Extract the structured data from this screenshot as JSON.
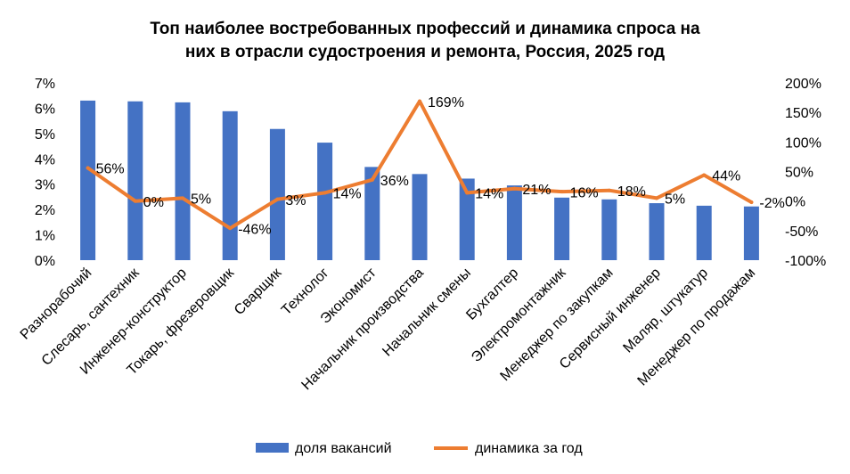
{
  "chart_data": {
    "type": "bar",
    "title_lines": [
      "Топ наиболее востребованных профессий и динамика спроса на",
      "них в отрасли судостроения и ремонта, Россия, 2025 год"
    ],
    "categories": [
      "Разнорабочий",
      "Слесарь, сантехник",
      "Инженер-конструктор",
      "Токарь, фрезеровщик",
      "Сварщик",
      "Технолог",
      "Экономист",
      "Начальник производства",
      "Начальник смены",
      "Бухгалтер",
      "Электромонтажник",
      "Менеджер по закупкам",
      "Сервисный инженер",
      "Маляр, штукатур",
      "Менеджер по продажам"
    ],
    "series": [
      {
        "name": "доля вакансий",
        "type": "bar",
        "axis": "left",
        "color": "#4472C4",
        "values": [
          6.3,
          6.27,
          6.23,
          5.88,
          5.18,
          4.64,
          3.68,
          3.4,
          3.22,
          2.95,
          2.47,
          2.4,
          2.25,
          2.15,
          2.12
        ]
      },
      {
        "name": "динамика за год",
        "type": "line",
        "axis": "right",
        "color": "#ED7D31",
        "values": [
          56,
          0,
          5,
          -46,
          3,
          14,
          36,
          169,
          14,
          21,
          16,
          18,
          5,
          44,
          -2
        ],
        "labels": [
          "56%",
          "0%",
          "5%",
          "-46%",
          "3%",
          "14%",
          "36%",
          "169%",
          "14%",
          "21%",
          "16%",
          "18%",
          "5%",
          "44%",
          "-2%"
        ]
      }
    ],
    "y_left": {
      "min": 0,
      "max": 7,
      "ticks": [
        "0%",
        "1%",
        "2%",
        "3%",
        "4%",
        "5%",
        "6%",
        "7%"
      ]
    },
    "y_right": {
      "min": -100,
      "max": 200,
      "ticks": [
        "-100%",
        "-50%",
        "0%",
        "50%",
        "100%",
        "150%",
        "200%"
      ]
    },
    "grid": false,
    "legend_position": "bottom",
    "legend": [
      "доля вакансий",
      "динамика за год"
    ]
  }
}
